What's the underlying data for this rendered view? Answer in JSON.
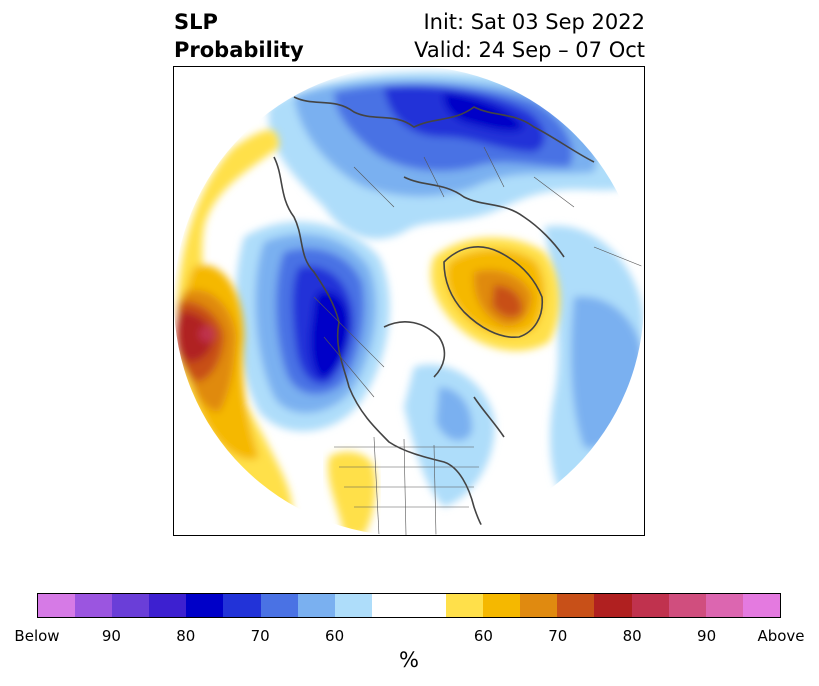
{
  "title": {
    "left_line1": "SLP",
    "left_line2": "Probability",
    "init": "Init: Sat 03 Sep 2022",
    "valid": "Valid: 24 Sep – 07 Oct"
  },
  "map": {
    "projection": "north-polar-stereographic",
    "features": {
      "below_normal_max": "Alaska / western Canada / US Pacific Northwest",
      "below_normal_secondary": "northern Eurasia",
      "above_normal_max": "central North Pacific",
      "above_normal_secondary": "Greenland"
    }
  },
  "colorbar": {
    "unit": "%",
    "colors": [
      "#d67ae6",
      "#9b55e0",
      "#6a3ed8",
      "#3d20d0",
      "#0000c8",
      "#2233d8",
      "#4a72e4",
      "#7ab0f0",
      "#aeddfa",
      "#ffffff",
      "#ffe04a",
      "#f5b800",
      "#e08a10",
      "#c85018",
      "#b02020",
      "#c0324e",
      "#d04e7e",
      "#dc66b0",
      "#e47ae0"
    ],
    "weights": [
      1,
      1,
      1,
      1,
      1,
      1,
      1,
      1,
      1,
      2,
      1,
      1,
      1,
      1,
      1,
      1,
      1,
      1,
      1
    ],
    "tick_labels": [
      "Below",
      "90",
      "80",
      "70",
      "60",
      "60",
      "70",
      "80",
      "90",
      "Above"
    ]
  }
}
